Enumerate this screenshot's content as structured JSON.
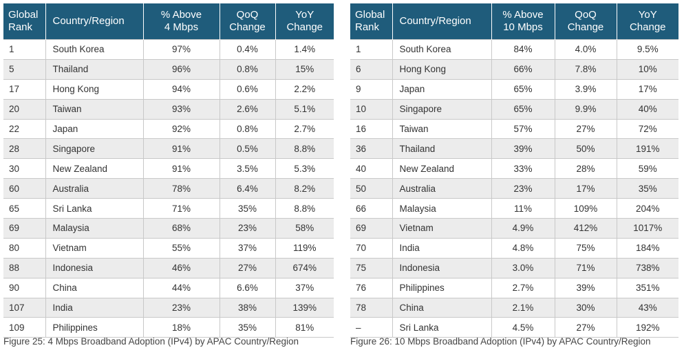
{
  "tables": [
    {
      "headers": {
        "rank": [
          "Global",
          "Rank"
        ],
        "country": "Country/Region",
        "pct": [
          "% Above",
          "4 Mbps"
        ],
        "qoq": [
          "QoQ",
          "Change"
        ],
        "yoy": [
          "YoY",
          "Change"
        ]
      },
      "rows": [
        [
          "1",
          "South Korea",
          "97%",
          "0.4%",
          "1.4%"
        ],
        [
          "5",
          "Thailand",
          "96%",
          "0.8%",
          "15%"
        ],
        [
          "17",
          "Hong Kong",
          "94%",
          "0.6%",
          "2.2%"
        ],
        [
          "20",
          "Taiwan",
          "93%",
          "2.6%",
          "5.1%"
        ],
        [
          "22",
          "Japan",
          "92%",
          "0.8%",
          "2.7%"
        ],
        [
          "28",
          "Singapore",
          "91%",
          "0.5%",
          "8.8%"
        ],
        [
          "30",
          "New Zealand",
          "91%",
          "3.5%",
          "5.3%"
        ],
        [
          "60",
          "Australia",
          "78%",
          "6.4%",
          "8.2%"
        ],
        [
          "65",
          "Sri Lanka",
          "71%",
          "35%",
          "8.8%"
        ],
        [
          "69",
          "Malaysia",
          "68%",
          "23%",
          "58%"
        ],
        [
          "80",
          "Vietnam",
          "55%",
          "37%",
          "119%"
        ],
        [
          "88",
          "Indonesia",
          "46%",
          "27%",
          "674%"
        ],
        [
          "90",
          "China",
          "44%",
          "6.6%",
          "37%"
        ],
        [
          "107",
          "India",
          "23%",
          "38%",
          "139%"
        ],
        [
          "109",
          "Philippines",
          "18%",
          "35%",
          "81%"
        ]
      ],
      "caption": "Figure 25: 4 Mbps Broadband Adoption (IPv4) by APAC Country/Region"
    },
    {
      "headers": {
        "rank": [
          "Global",
          "Rank"
        ],
        "country": "Country/Region",
        "pct": [
          "% Above",
          "10 Mbps"
        ],
        "qoq": [
          "QoQ",
          "Change"
        ],
        "yoy": [
          "YoY",
          "Change"
        ]
      },
      "rows": [
        [
          "1",
          "South Korea",
          "84%",
          "4.0%",
          "9.5%"
        ],
        [
          "6",
          "Hong Kong",
          "66%",
          "7.8%",
          "10%"
        ],
        [
          "9",
          "Japan",
          "65%",
          "3.9%",
          "17%"
        ],
        [
          "10",
          "Singapore",
          "65%",
          "9.9%",
          "40%"
        ],
        [
          "16",
          "Taiwan",
          "57%",
          "27%",
          "72%"
        ],
        [
          "36",
          "Thailand",
          "39%",
          "50%",
          "191%"
        ],
        [
          "40",
          "New Zealand",
          "33%",
          "28%",
          "59%"
        ],
        [
          "50",
          "Australia",
          "23%",
          "17%",
          "35%"
        ],
        [
          "66",
          "Malaysia",
          "11%",
          "109%",
          "204%"
        ],
        [
          "69",
          "Vietnam",
          "4.9%",
          "412%",
          "1017%"
        ],
        [
          "70",
          "India",
          "4.8%",
          "75%",
          "184%"
        ],
        [
          "75",
          "Indonesia",
          "3.0%",
          "71%",
          "738%"
        ],
        [
          "76",
          "Philippines",
          "2.7%",
          "39%",
          "351%"
        ],
        [
          "78",
          "China",
          "2.1%",
          "30%",
          "43%"
        ],
        [
          "–",
          "Sri Lanka",
          "4.5%",
          "27%",
          "192%"
        ]
      ],
      "caption": "Figure 26: 10 Mbps Broadband Adoption (IPv4) by APAC Country/Region"
    }
  ],
  "colors": {
    "header_bg": "#1f5c7b",
    "header_text": "#ffffff",
    "row_alt_bg": "#ececec",
    "grid_line": "#c8c8c8"
  }
}
